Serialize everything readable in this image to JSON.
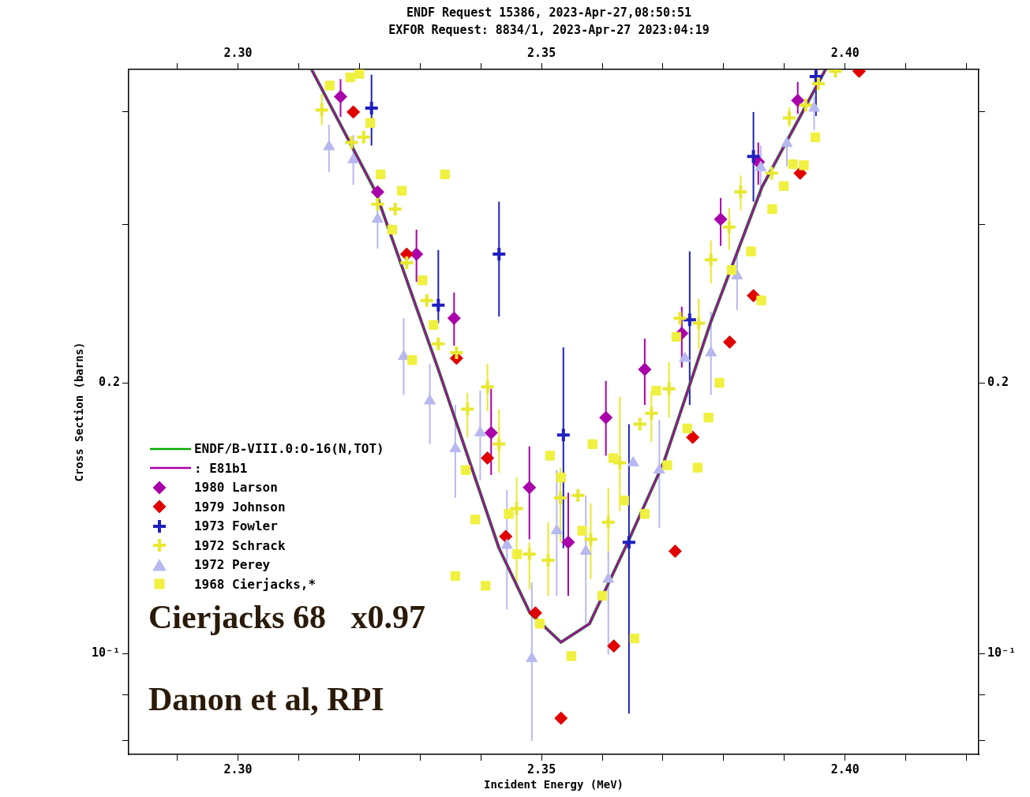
{
  "chart_data": {
    "type": "scatter",
    "title": "ENDF Request 15386, 2023-Apr-27,08:50:51",
    "subtitle": "EXFOR Request: 8834/1, 2023-Apr-27 2023:04:19",
    "xlabel": "Incident Energy (MeV)",
    "ylabel": "Cross Section (barns)",
    "annotations": [
      "Cierjacks 68   x0.97",
      "Danon et al, RPI"
    ],
    "xlim": [
      2.282,
      2.422
    ],
    "xticks": [
      {
        "value": 2.29,
        "label": null
      },
      {
        "value": 2.3,
        "label": "2.30"
      },
      {
        "value": 2.31,
        "label": null
      },
      {
        "value": 2.32,
        "label": null
      },
      {
        "value": 2.33,
        "label": null
      },
      {
        "value": 2.34,
        "label": null
      },
      {
        "value": 2.35,
        "label": "2.35"
      },
      {
        "value": 2.36,
        "label": null
      },
      {
        "value": 2.37,
        "label": null
      },
      {
        "value": 2.38,
        "label": null
      },
      {
        "value": 2.39,
        "label": null
      },
      {
        "value": 2.4,
        "label": "2.40"
      },
      {
        "value": 2.41,
        "label": null
      },
      {
        "value": 2.42,
        "label": null
      }
    ],
    "x2lim": [
      2.282,
      2.422
    ],
    "x2ticks": [
      {
        "value": 2.29,
        "label": null
      },
      {
        "value": 2.3,
        "label": "2.30"
      },
      {
        "value": 2.31,
        "label": null
      },
      {
        "value": 2.32,
        "label": null
      },
      {
        "value": 2.33,
        "label": null
      },
      {
        "value": 2.34,
        "label": null
      },
      {
        "value": 2.35,
        "label": "2.35"
      },
      {
        "value": 2.36,
        "label": null
      },
      {
        "value": 2.37,
        "label": null
      },
      {
        "value": 2.38,
        "label": null
      },
      {
        "value": 2.39,
        "label": null
      },
      {
        "value": 2.4,
        "label": "2.40"
      },
      {
        "value": 2.41,
        "label": null
      },
      {
        "value": 2.42,
        "label": null
      }
    ],
    "ylim": [
      0.0773,
      0.446
    ],
    "yticks": [
      {
        "value": 0.08,
        "label": null
      },
      {
        "value": 0.09,
        "label": null
      },
      {
        "value": 0.1,
        "label": "10⁻¹"
      },
      {
        "value": 0.2,
        "label": "0.2"
      },
      {
        "value": 0.3,
        "label": null
      },
      {
        "value": 0.4,
        "label": null
      }
    ],
    "log": "y",
    "grid": false,
    "legend": "left",
    "series": [
      {
        "name": "ENDF/B-VIII.0:O-16(N,TOT)",
        "type": "line",
        "color": "#00aa00",
        "marker": "none",
        "line_style": "solid",
        "x": [
          2.3122,
          2.3226,
          2.333,
          2.343,
          2.3481,
          2.3532,
          2.3579,
          2.3642,
          2.3701,
          2.3779,
          2.3863,
          2.3967
        ],
        "values": [
          0.445,
          0.327,
          0.207,
          0.131,
          0.111,
          0.103,
          0.108,
          0.133,
          0.163,
          0.234,
          0.33,
          0.445
        ]
      },
      {
        "name": ": E81b1",
        "type": "line",
        "color": "#aa00aa",
        "marker": "none",
        "line_style": "solid",
        "x": [
          2.3122,
          2.3226,
          2.333,
          2.343,
          2.3481,
          2.3532,
          2.3579,
          2.3642,
          2.3701,
          2.3779,
          2.3863,
          2.3967
        ],
        "values": [
          0.445,
          0.327,
          0.207,
          0.131,
          0.111,
          0.103,
          0.108,
          0.133,
          0.163,
          0.234,
          0.33,
          0.445
        ]
      },
      {
        "name": "1980 Larson",
        "color": "#aa00aa",
        "marker": "diamond",
        "x": [
          2.3169,
          2.323,
          2.3294,
          2.3356,
          2.3417,
          2.348,
          2.3544,
          2.3606,
          2.367,
          2.3731,
          2.3795,
          2.3857,
          2.3922
        ],
        "values": [
          0.416,
          0.326,
          0.278,
          0.236,
          0.176,
          0.153,
          0.133,
          0.183,
          0.207,
          0.227,
          0.304,
          0.352,
          0.412
        ],
        "errors": [
          [
            0.395,
            0.435
          ],
          null,
          [
            0.259,
            0.296
          ],
          [
            0.22,
            0.252
          ],
          [
            0.158,
            0.197
          ],
          [
            0.134,
            0.17
          ],
          [
            0.116,
            0.151
          ],
          [
            0.166,
            0.201
          ],
          [
            0.189,
            0.224
          ],
          [
            0.208,
            0.243
          ],
          [
            0.284,
            0.321
          ],
          [
            0.332,
            0.37
          ],
          [
            0.398,
            0.432
          ]
        ]
      },
      {
        "name": "1979 Johnson",
        "color": "#e00000",
        "marker": "diamond",
        "x": [
          2.319,
          2.3278,
          2.336,
          2.3411,
          2.3441,
          2.349,
          2.3532,
          2.3619,
          2.372,
          2.3749,
          2.381,
          2.3849,
          2.3926,
          2.4023
        ],
        "values": [
          0.4,
          0.278,
          0.213,
          0.165,
          0.135,
          0.111,
          0.0848,
          0.102,
          0.13,
          0.174,
          0.222,
          0.25,
          0.342,
          0.444
        ]
      },
      {
        "name": "1973 Fowler",
        "color": "#2020c0",
        "marker": "cross",
        "x": [
          2.322,
          2.333,
          2.343,
          2.3536,
          2.3644,
          2.3744,
          2.3849,
          2.3952
        ],
        "values": [
          0.404,
          0.244,
          0.278,
          0.175,
          0.133,
          0.235,
          0.357,
          0.438
        ],
        "errors": [
          [
            0.367,
            0.44
          ],
          [
            0.233,
            0.281
          ],
          [
            0.237,
            0.318
          ],
          [
            0.131,
            0.219
          ],
          [
            0.0858,
            0.18
          ],
          [
            0.189,
            0.28
          ],
          [
            0.318,
            0.4
          ],
          [
            0.396,
            0.446
          ]
        ]
      },
      {
        "name": "1972 Schrack",
        "color": "#e8e830",
        "marker": "cross",
        "x": [
          2.3138,
          2.3187,
          2.3207,
          2.323,
          2.3259,
          2.3278,
          2.3311,
          2.333,
          2.336,
          2.3378,
          2.3411,
          2.343,
          2.3459,
          2.348,
          2.3511,
          2.3531,
          2.356,
          2.3581,
          2.361,
          2.3629,
          2.3662,
          2.3681,
          2.371,
          2.3728,
          2.3759,
          2.3779,
          2.3809,
          2.3828,
          2.3879,
          2.3908,
          2.3935,
          2.3956,
          2.3984
        ],
        "values": [
          0.402,
          0.37,
          0.375,
          0.316,
          0.312,
          0.272,
          0.247,
          0.221,
          0.216,
          0.187,
          0.198,
          0.171,
          0.145,
          0.129,
          0.127,
          0.149,
          0.15,
          0.134,
          0.14,
          0.163,
          0.18,
          0.185,
          0.197,
          0.236,
          0.233,
          0.274,
          0.298,
          0.326,
          0.342,
          0.394,
          0.407,
          0.43,
          0.444
        ],
        "errors": [
          [
            0.387,
            0.419
          ],
          null,
          null,
          null,
          null,
          null,
          null,
          null,
          null,
          [
            0.174,
            0.195
          ],
          [
            0.186,
            0.21
          ],
          [
            0.159,
            0.187
          ],
          [
            0.118,
            0.157
          ],
          [
            0.118,
            0.133
          ],
          [
            0.116,
            0.14
          ],
          [
            0.133,
            0.161
          ],
          null,
          [
            0.121,
            0.147
          ],
          [
            0.128,
            0.153
          ],
          [
            0.144,
            0.193
          ],
          null,
          [
            0.172,
            0.196
          ],
          [
            0.183,
            0.211
          ],
          null,
          [
            0.218,
            0.248
          ],
          [
            0.258,
            0.288
          ],
          [
            0.281,
            0.313
          ],
          [
            0.311,
            0.34
          ],
          null,
          [
            0.385,
            0.405
          ],
          null,
          null,
          null
        ]
      },
      {
        "name": "1972 Perey",
        "color": "#b8b8f0",
        "marker": "triangle",
        "x": [
          2.315,
          2.319,
          2.323,
          2.3273,
          2.3316,
          2.3358,
          2.3399,
          2.3443,
          2.3484,
          2.3525,
          2.3573,
          2.361,
          2.3651,
          2.3694,
          2.3736,
          2.3779,
          2.3822,
          2.3861,
          2.3904,
          2.3949
        ],
        "values": [
          0.366,
          0.354,
          0.304,
          0.214,
          0.191,
          0.169,
          0.176,
          0.132,
          0.0988,
          0.137,
          0.13,
          0.121,
          0.163,
          0.16,
          0.213,
          0.216,
          0.263,
          0.347,
          0.369,
          0.404
        ],
        "errors": [
          [
            0.343,
            0.387
          ],
          [
            0.332,
            0.377
          ],
          [
            0.282,
            0.327
          ],
          [
            0.194,
            0.236
          ],
          [
            0.171,
            0.21
          ],
          [
            0.149,
            0.189
          ],
          [
            0.156,
            0.196
          ],
          [
            0.112,
            0.152
          ],
          [
            0.08,
            0.12
          ],
          [
            0.116,
            0.16
          ],
          [
            0.108,
            0.15
          ],
          [
            0.0998,
            0.13
          ],
          null,
          [
            0.138,
            0.182
          ],
          null,
          [
            0.194,
            0.24
          ],
          [
            0.241,
            0.281
          ],
          [
            0.322,
            0.367
          ],
          [
            0.348,
            0.375
          ],
          [
            0.382,
            0.416
          ]
        ]
      },
      {
        "name": "1968 Cierjacks,*",
        "color": "#f0f040",
        "marker": "square",
        "x": [
          2.3151,
          2.3185,
          2.32,
          2.3218,
          2.3235,
          2.3254,
          2.327,
          2.3287,
          2.3304,
          2.3322,
          2.3341,
          2.3358,
          2.3375,
          2.3391,
          2.3408,
          2.3446,
          2.346,
          2.3497,
          2.3514,
          2.3532,
          2.3549,
          2.3567,
          2.3584,
          2.36,
          2.3618,
          2.3636,
          2.3653,
          2.367,
          2.3689,
          2.3707,
          2.3722,
          2.374,
          2.3757,
          2.3775,
          2.3793,
          2.3813,
          2.3845,
          2.3862,
          2.388,
          2.3899,
          2.3914,
          2.3932,
          2.3951
        ],
        "values": [
          0.428,
          0.437,
          0.441,
          0.389,
          0.341,
          0.296,
          0.327,
          0.212,
          0.26,
          0.232,
          0.341,
          0.122,
          0.16,
          0.141,
          0.119,
          0.143,
          0.129,
          0.108,
          0.166,
          0.157,
          0.0994,
          0.137,
          0.171,
          0.116,
          0.165,
          0.148,
          0.104,
          0.143,
          0.196,
          0.162,
          0.225,
          0.178,
          0.161,
          0.183,
          0.2,
          0.267,
          0.28,
          0.247,
          0.312,
          0.331,
          0.35,
          0.349,
          0.375
        ]
      }
    ]
  }
}
